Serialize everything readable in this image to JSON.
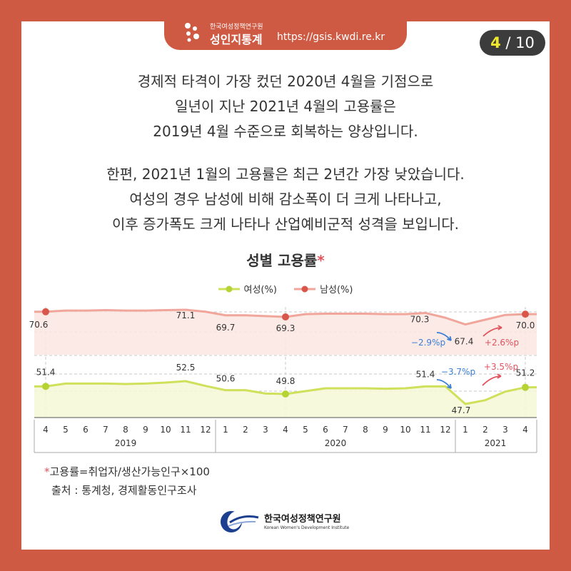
{
  "header": {
    "org_small": "한국여성정책연구원",
    "brand": "성인지통계",
    "url": "https://gsis.kwdi.re.kr"
  },
  "pager": {
    "current": "4",
    "total": "10"
  },
  "paragraph1": [
    "경제적 타격이 가장 컸던 2020년 4월을 기점으로",
    "일년이 지난 2021년 4월의 고용률은",
    "2019년 4월 수준으로 회복하는 양상입니다."
  ],
  "paragraph2": [
    "한편, 2021년 1월의 고용률은 최근 2년간 가장 낮았습니다.",
    "여성의 경우 남성에 비해 감소폭이 더 크게 나타나고,",
    "이후 증가폭도 크게 나타나 산업예비군적 성격을 보입니다."
  ],
  "chart_data": {
    "type": "line",
    "title": "성별 고용률",
    "title_mark": "*",
    "months": [
      "4",
      "5",
      "6",
      "7",
      "8",
      "9",
      "10",
      "11",
      "12",
      "1",
      "2",
      "3",
      "4",
      "5",
      "6",
      "7",
      "8",
      "9",
      "10",
      "11",
      "12",
      "1",
      "2",
      "3",
      "4"
    ],
    "years": [
      {
        "label": "2019",
        "start": 0,
        "end": 8
      },
      {
        "label": "2020",
        "start": 9,
        "end": 20
      },
      {
        "label": "2021",
        "start": 21,
        "end": 24
      }
    ],
    "series": [
      {
        "name": "여성(%)",
        "color": "#cfe05a",
        "fill": "#f4f8d6",
        "values": [
          51.4,
          52.0,
          52.0,
          52.0,
          51.9,
          52.0,
          52.2,
          52.5,
          51.5,
          50.6,
          50.6,
          49.9,
          49.8,
          50.4,
          51.0,
          51.0,
          51.0,
          50.9,
          51.0,
          51.4,
          51.4,
          47.7,
          48.5,
          50.3,
          51.2
        ],
        "labels": [
          {
            "i": 0,
            "text": "51.4"
          },
          {
            "i": 7,
            "text": "52.5"
          },
          {
            "i": 9,
            "text": "50.6"
          },
          {
            "i": 12,
            "text": "49.8"
          },
          {
            "i": 19,
            "text": "51.4"
          },
          {
            "i": 21,
            "text": "47.7"
          },
          {
            "i": 24,
            "text": "51.2"
          }
        ],
        "markers": [
          0,
          12,
          24
        ]
      },
      {
        "name": "남성(%)",
        "color": "#f0a69b",
        "fill": "#fce6e2",
        "values": [
          70.6,
          70.9,
          70.9,
          71.0,
          70.9,
          70.9,
          71.0,
          71.1,
          70.6,
          69.7,
          69.7,
          69.5,
          69.3,
          70.0,
          70.1,
          70.1,
          70.1,
          70.0,
          70.0,
          70.3,
          69.1,
          67.4,
          68.6,
          69.8,
          70.0
        ],
        "labels": [
          {
            "i": 0,
            "text": "70.6"
          },
          {
            "i": 7,
            "text": "71.1"
          },
          {
            "i": 9,
            "text": "69.7"
          },
          {
            "i": 12,
            "text": "69.3"
          },
          {
            "i": 19,
            "text": "70.3"
          },
          {
            "i": 21,
            "text": "67.4"
          },
          {
            "i": 24,
            "text": "70.0"
          }
        ],
        "markers": [
          0,
          12,
          24
        ]
      }
    ],
    "annotations": [
      {
        "text": "−2.9%p",
        "color": "#3a7fd6"
      },
      {
        "text": "+2.6%p",
        "color": "#e0525c"
      },
      {
        "text": "−3.7%p",
        "color": "#3a7fd6"
      },
      {
        "text": "+3.5%p",
        "color": "#e0525c"
      }
    ]
  },
  "footnote": {
    "mark": "*",
    "text": "고용률=취업자/생산가능인구×100"
  },
  "source": "출처 : 통계청, 경제활동인구조사",
  "org": {
    "kr": "한국여성정책연구원",
    "en": "Korean Women's Development Institute"
  },
  "colors": {
    "frame": "#cf5a43",
    "pager_bg": "#3c3c3c",
    "pager_current": "#f0e82c"
  }
}
